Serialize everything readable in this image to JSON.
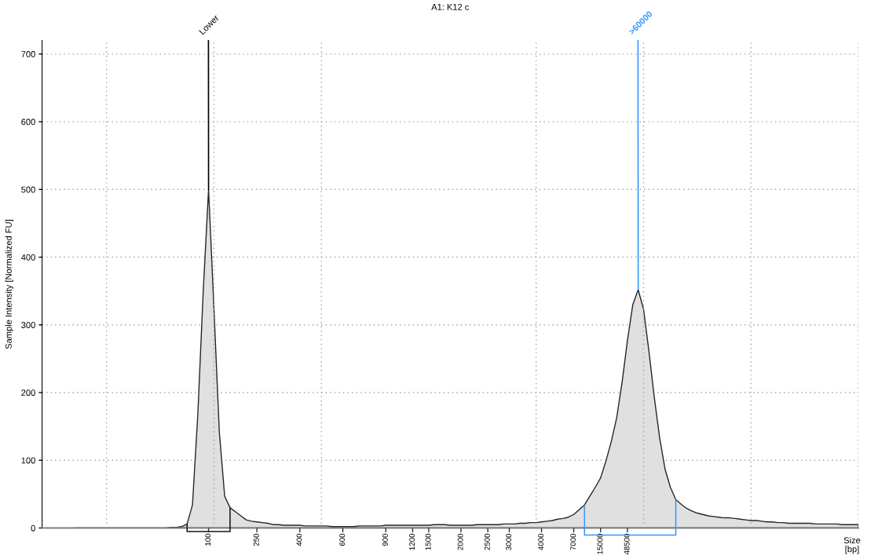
{
  "chart_data": {
    "type": "area",
    "title": "A1: K12 c",
    "xlabel": "Size\n[bp]",
    "ylabel": "Sample Intensity [Normalized FU]",
    "categories": [
      null,
      null,
      null,
      null,
      null,
      null,
      null,
      null,
      null,
      null,
      null,
      null,
      null,
      null,
      null,
      null,
      null,
      null,
      null,
      null,
      null,
      null,
      null,
      null,
      null,
      null,
      null,
      null,
      null,
      null,
      null,
      "100",
      null,
      null,
      null,
      null,
      null,
      null,
      null,
      null,
      "250",
      null,
      null,
      null,
      null,
      null,
      null,
      null,
      "400",
      null,
      null,
      null,
      null,
      null,
      null,
      null,
      "600",
      null,
      null,
      null,
      null,
      null,
      null,
      null,
      "900",
      null,
      null,
      null,
      null,
      "1200",
      null,
      null,
      "1500",
      null,
      null,
      null,
      null,
      null,
      "2000",
      null,
      null,
      null,
      null,
      "2500",
      null,
      null,
      null,
      "3000",
      null,
      null,
      null,
      null,
      null,
      "4000",
      null,
      null,
      null,
      null,
      null,
      "7000",
      null,
      null,
      null,
      null,
      "15000",
      null,
      null,
      null,
      null,
      "48500",
      null,
      null,
      null,
      null,
      null,
      null,
      null,
      null,
      null,
      null,
      null,
      null,
      null,
      null,
      null,
      null,
      null,
      null,
      null,
      null,
      null,
      null,
      null,
      null,
      null,
      null,
      null,
      null,
      null,
      null,
      null,
      null,
      null,
      null,
      null,
      null,
      null,
      null,
      null,
      null,
      null,
      null,
      null
    ],
    "values": [
      null,
      null,
      null,
      null,
      null,
      null,
      0,
      0,
      0,
      0,
      0,
      0,
      0,
      0,
      0,
      0,
      0,
      0,
      0,
      0,
      0,
      0,
      0,
      0,
      1,
      1,
      2,
      6,
      34,
      168,
      349,
      500,
      324,
      142,
      47,
      30,
      24,
      18,
      12,
      10,
      9,
      8,
      7,
      5,
      5,
      4,
      4,
      4,
      4,
      3,
      3,
      3,
      3,
      3,
      2,
      2,
      2,
      2,
      2,
      3,
      3,
      3,
      3,
      3,
      4,
      4,
      4,
      4,
      4,
      4,
      4,
      4,
      4,
      5,
      5,
      5,
      4,
      4,
      4,
      4,
      4,
      5,
      5,
      5,
      5,
      5,
      6,
      6,
      6,
      7,
      7,
      8,
      8,
      9,
      10,
      11,
      13,
      14,
      16,
      20,
      27,
      34,
      47,
      60,
      74,
      99,
      128,
      163,
      215,
      277,
      330,
      352,
      323,
      261,
      193,
      133,
      87,
      60,
      42,
      35,
      29,
      25,
      22,
      20,
      18,
      17,
      16,
      15,
      15,
      14,
      13,
      12,
      11,
      11,
      10,
      9,
      9,
      8,
      8,
      7,
      7,
      7,
      7,
      7,
      6,
      6,
      6,
      6,
      6,
      5,
      5,
      5,
      5
    ],
    "color": "#e0e0e0",
    "ylim": [
      0,
      720
    ],
    "yticks": [
      0,
      100,
      200,
      300,
      400,
      500,
      600,
      700
    ],
    "grid": "y",
    "annotations": [
      {
        "text": "Lower",
        "x": "100",
        "y": 500
      },
      {
        "text": ">60000",
        "y": 352
      }
    ]
  }
}
